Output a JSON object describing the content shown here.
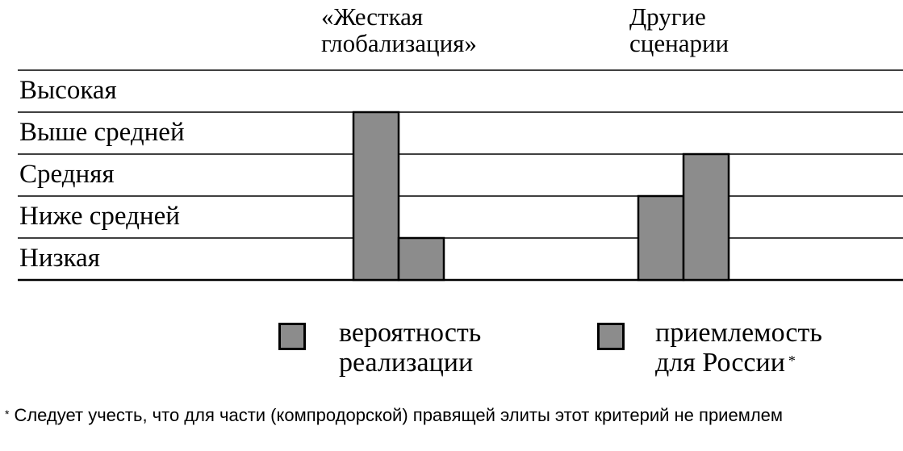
{
  "chart_data": {
    "type": "bar",
    "categories": [
      "«Жесткая глобализация»",
      "Другие сценарии"
    ],
    "category_lines": [
      [
        "«Жесткая",
        "глобализация»"
      ],
      [
        "Другие",
        "сценарии"
      ]
    ],
    "levels": [
      "Высокая",
      "Выше средней",
      "Средняя",
      "Ниже средней",
      "Низкая"
    ],
    "level_scale": {
      "Низкая": 1,
      "Ниже средней": 2,
      "Средняя": 3,
      "Выше средней": 4,
      "Высокая": 5
    },
    "series": [
      {
        "name": "вероятность реализации",
        "values": [
          4,
          2
        ]
      },
      {
        "name": "приемлемость для России",
        "values": [
          1,
          3
        ]
      }
    ],
    "ylim": [
      0,
      5
    ],
    "bar_fill": "#8c8c8c",
    "bar_stroke": "#000000",
    "grid": true,
    "legend_position": "bottom"
  },
  "legend": [
    {
      "line1": "вероятность",
      "line2": "реализации",
      "marker": ""
    },
    {
      "line1": "приемлемость",
      "line2": "для России",
      "marker": "*"
    }
  ],
  "footnote": {
    "marker": "*",
    "text": "Следует учесть, что для части (компродорской) правящей элиты этот критерий не приемлем"
  }
}
